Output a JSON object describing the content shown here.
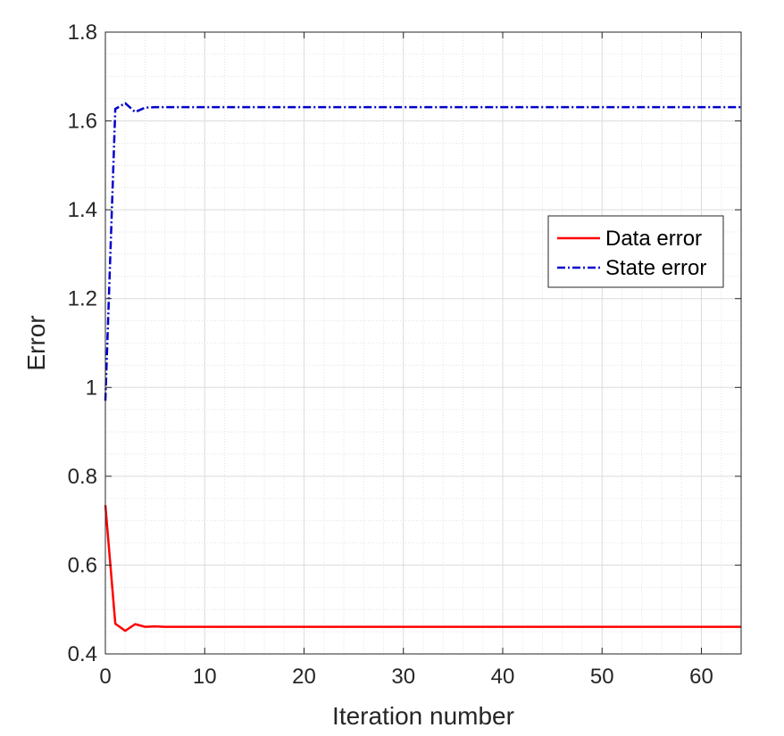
{
  "chart_data": {
    "type": "line",
    "title": "",
    "xlabel": "Iteration number",
    "ylabel": "Error",
    "xlim": [
      0,
      64
    ],
    "ylim": [
      0.4,
      1.8
    ],
    "xticks": [
      0,
      10,
      20,
      30,
      40,
      50,
      60
    ],
    "yticks": [
      0.4,
      0.6,
      0.8,
      1.0,
      1.2,
      1.4,
      1.6,
      1.8
    ],
    "xtick_labels": [
      "0",
      "10",
      "20",
      "30",
      "40",
      "50",
      "60"
    ],
    "ytick_labels": [
      "0.4",
      "0.6",
      "0.8",
      "1",
      "1.2",
      "1.4",
      "1.6",
      "1.8"
    ],
    "grid": true,
    "minor_grid": true,
    "legend_position": "right-center",
    "series": [
      {
        "name": "Data error",
        "color": "#ff0000",
        "style": "solid",
        "x": [
          0,
          1,
          2,
          3,
          4,
          5,
          6,
          7,
          8,
          10,
          20,
          30,
          40,
          50,
          60,
          64
        ],
        "y": [
          0.735,
          0.468,
          0.452,
          0.467,
          0.461,
          0.462,
          0.461,
          0.461,
          0.461,
          0.461,
          0.461,
          0.461,
          0.461,
          0.461,
          0.461,
          0.461
        ]
      },
      {
        "name": "State error",
        "color": "#0000cc",
        "style": "dashdot",
        "x": [
          0,
          1,
          2,
          3,
          4,
          5,
          6,
          7,
          8,
          10,
          20,
          30,
          40,
          50,
          60,
          64
        ],
        "y": [
          0.97,
          1.627,
          1.64,
          1.62,
          1.63,
          1.631,
          1.631,
          1.631,
          1.631,
          1.631,
          1.631,
          1.631,
          1.631,
          1.631,
          1.631,
          1.631
        ]
      }
    ]
  }
}
